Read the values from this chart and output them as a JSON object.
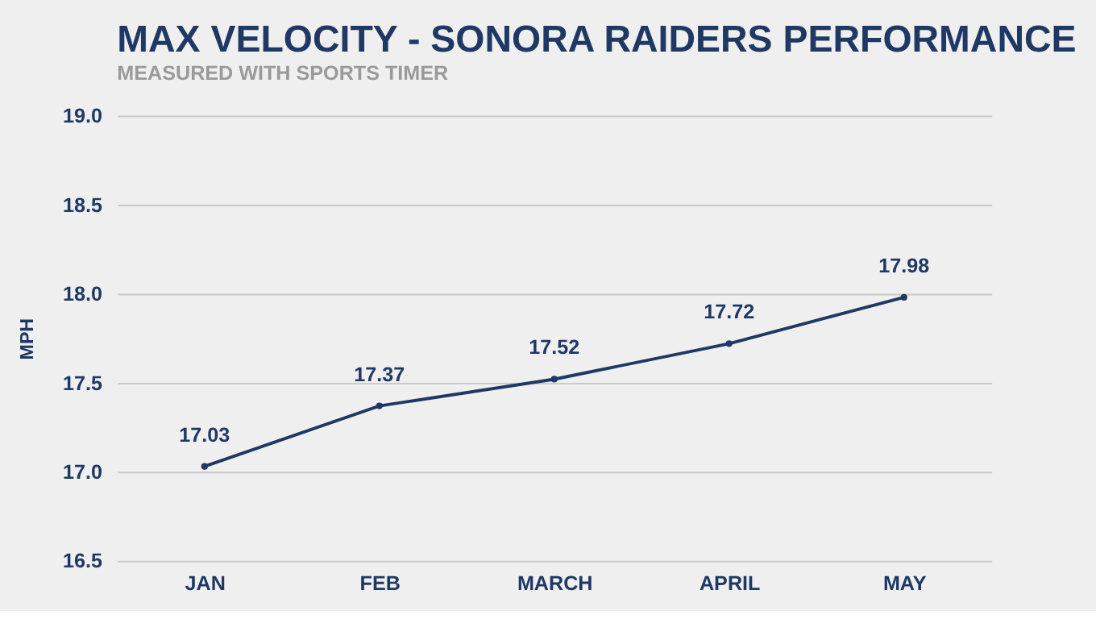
{
  "chart_data": {
    "type": "line",
    "title": "MAX VELOCITY - SONORA RAIDERS PERFORMANCE",
    "subtitle": "MEASURED WITH SPORTS TIMER",
    "ylabel": "MPH",
    "categories": [
      "JAN",
      "FEB",
      "MARCH",
      "APRIL",
      "MAY"
    ],
    "series": [
      {
        "color": "#1f3864",
        "values": [
          17.03,
          17.37,
          17.52,
          17.72,
          17.98
        ]
      }
    ],
    "ylim": [
      16.5,
      19.0
    ],
    "yticks": [
      {
        "value": 16.5,
        "label": "16.5"
      },
      {
        "value": 17,
        "label": "17.0"
      },
      {
        "value": 17.5,
        "label": "17.5"
      },
      {
        "value": 18,
        "label": "18.0"
      },
      {
        "value": 18.5,
        "label": "18.5"
      },
      {
        "value": 19,
        "label": "19.0"
      }
    ],
    "grid": "y",
    "marker": "circle",
    "data_labels": true
  }
}
